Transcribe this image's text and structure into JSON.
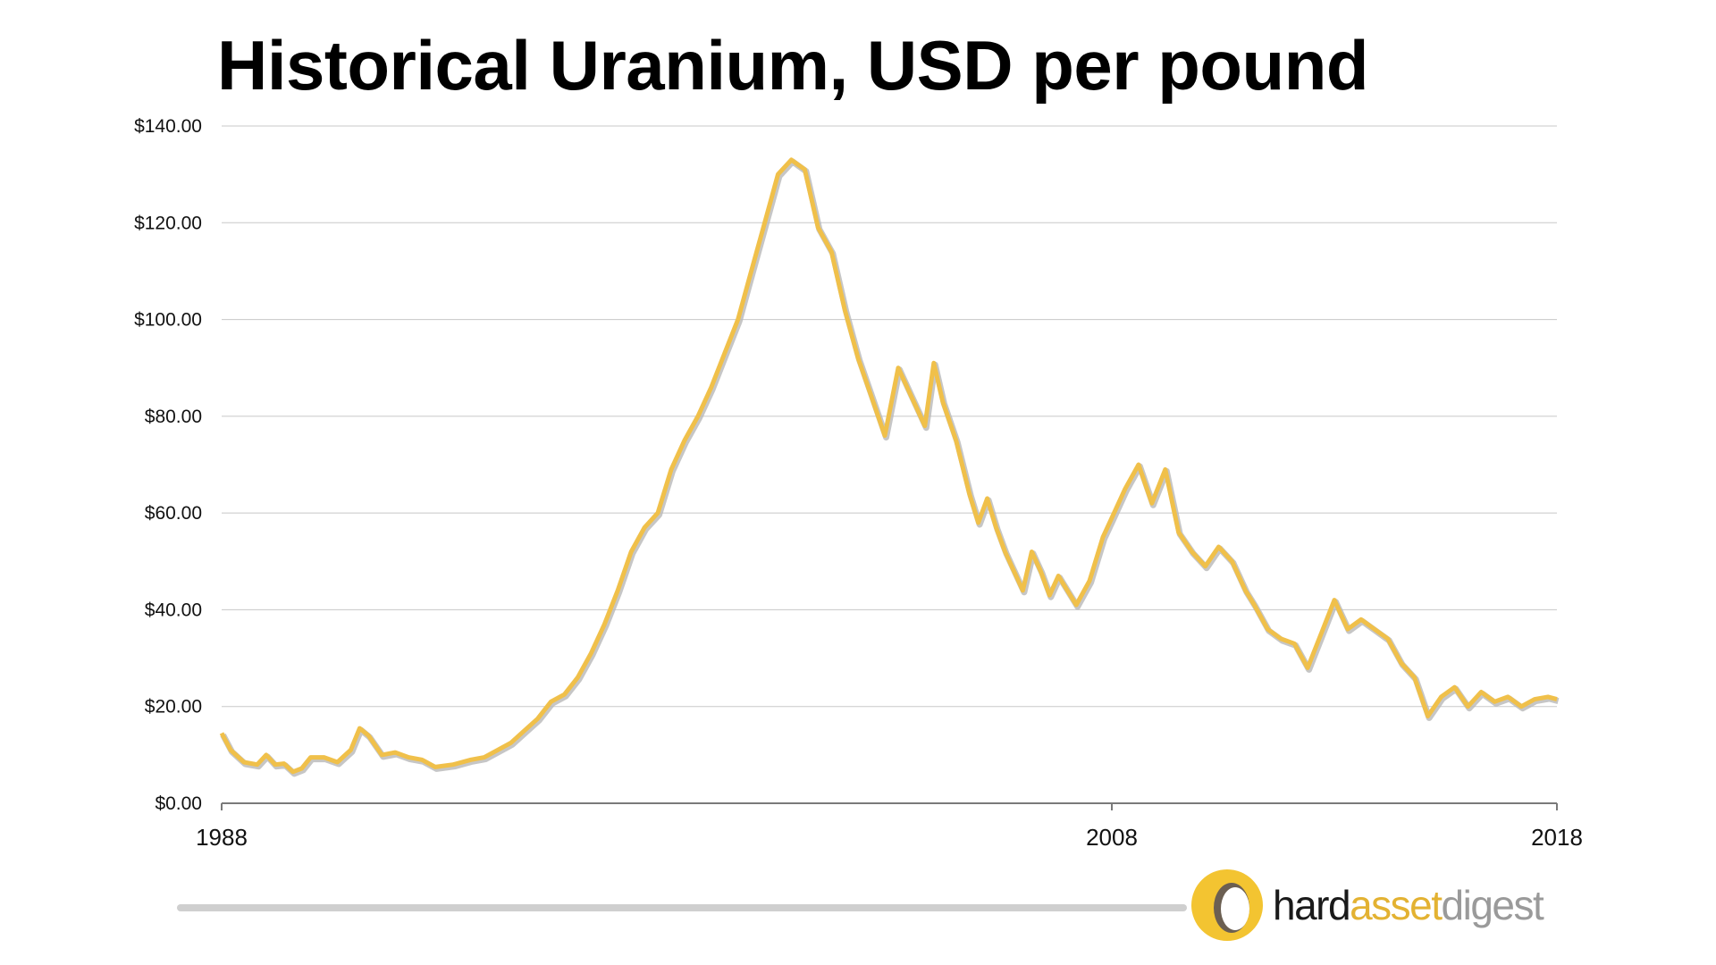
{
  "header": {
    "title": "Historical Uranium, USD per pound"
  },
  "logo": {
    "part_hard": "hard",
    "part_asset": "asset",
    "part_digest": "digest",
    "colors": {
      "hard": "#1a1a1a",
      "asset": "#e3b232",
      "digest": "#9a9a9a",
      "ring": "#f0c030"
    }
  },
  "colors": {
    "line": "#f0c04a",
    "line_shadow": "#b8b8b8",
    "grid": "#c8c8c8",
    "axis": "#7a7a7a",
    "footer_rule": "#cfcfcf"
  },
  "chart_data": {
    "type": "line",
    "title": "Historical Uranium, USD per pound",
    "xlabel": "",
    "ylabel": "",
    "ylim": [
      0,
      140
    ],
    "xlim": [
      1988,
      2018
    ],
    "y_ticks": [
      "$0.00",
      "$20.00",
      "$40.00",
      "$60.00",
      "$80.00",
      "$100.00",
      "$120.00",
      "$140.00"
    ],
    "y_tick_values": [
      0,
      20,
      40,
      60,
      80,
      100,
      120,
      140
    ],
    "x_ticks": [
      "1988",
      "2008",
      "2018"
    ],
    "x_tick_values": [
      1988,
      2008,
      2018
    ],
    "grid": true,
    "legend": "none",
    "series": [
      {
        "x": [
          1988.0,
          1988.2,
          1988.5,
          1988.8,
          1989.0,
          1989.2,
          1989.4,
          1989.6,
          1989.8,
          1990.0,
          1990.3,
          1990.6,
          1990.9,
          1991.1,
          1991.3,
          1991.6,
          1991.9,
          1992.2,
          1992.5,
          1992.8,
          1993.2,
          1993.6,
          1993.9,
          1994.2,
          1994.5,
          1994.8,
          1995.1,
          1995.4,
          1995.7,
          1996.0,
          1996.3,
          1996.6,
          1996.9,
          1997.2,
          1997.5,
          1997.8,
          1998.1,
          1998.4,
          1998.7,
          1999.0,
          1999.3,
          1999.6,
          1999.9,
          2000.2,
          2000.5,
          2000.8,
          2001.1,
          2001.4,
          2001.7,
          2002.0,
          2002.3,
          2002.6,
          2002.9,
          2003.2,
          2003.5,
          2003.8,
          2004.0,
          2004.2,
          2004.5,
          2004.8,
          2005.0,
          2005.2,
          2005.4,
          2005.6,
          2005.8,
          2006.0,
          2006.2,
          2006.4,
          2006.6,
          2006.8,
          2007.0,
          2007.2,
          2007.5,
          2007.8,
          2008.0,
          2008.3,
          2008.6,
          2008.9,
          2009.2,
          2009.5,
          2009.8,
          2010.1,
          2010.4,
          2010.7,
          2011.0,
          2011.2,
          2011.5,
          2011.8,
          2012.1,
          2012.4,
          2012.7,
          2013.0,
          2013.3,
          2013.6,
          2013.9,
          2014.2,
          2014.5,
          2014.8,
          2015.1,
          2015.4,
          2015.7,
          2016.0,
          2016.3,
          2016.6,
          2016.9,
          2017.2,
          2017.5,
          2017.8,
          2018.0
        ],
        "y": [
          14.5,
          11.0,
          8.5,
          8.0,
          10.0,
          8.0,
          8.2,
          6.5,
          7.2,
          9.5,
          9.5,
          8.5,
          11.0,
          15.5,
          14.0,
          10.0,
          10.5,
          9.5,
          9.0,
          7.5,
          8.0,
          9.0,
          9.5,
          11.0,
          12.5,
          15.0,
          17.5,
          21.0,
          22.5,
          26.0,
          31.0,
          37.0,
          44.0,
          52.0,
          57.0,
          60.0,
          69.0,
          75.0,
          80.0,
          86.0,
          93.0,
          100.0,
          110.0,
          120.0,
          130.0,
          133.0,
          131.0,
          119.0,
          114.0,
          102.0,
          92.0,
          84.0,
          76.0,
          90.0,
          84.0,
          78.0,
          91.0,
          83.0,
          75.0,
          64.0,
          58.0,
          63.0,
          57.0,
          52.0,
          48.0,
          44.0,
          52.0,
          48.0,
          43.0,
          47.0,
          44.0,
          41.0,
          46.0,
          55.0,
          59.0,
          65.0,
          70.0,
          62.0,
          69.0,
          56.0,
          52.0,
          49.0,
          53.0,
          50.0,
          44.0,
          41.0,
          36.0,
          34.0,
          33.0,
          28.0,
          35.0,
          42.0,
          36.0,
          38.0,
          36.0,
          34.0,
          29.0,
          26.0,
          18.0,
          22.0,
          24.0,
          20.0,
          23.0,
          21.0,
          22.0,
          20.0,
          21.5,
          22.0,
          21.5
        ]
      }
    ]
  }
}
